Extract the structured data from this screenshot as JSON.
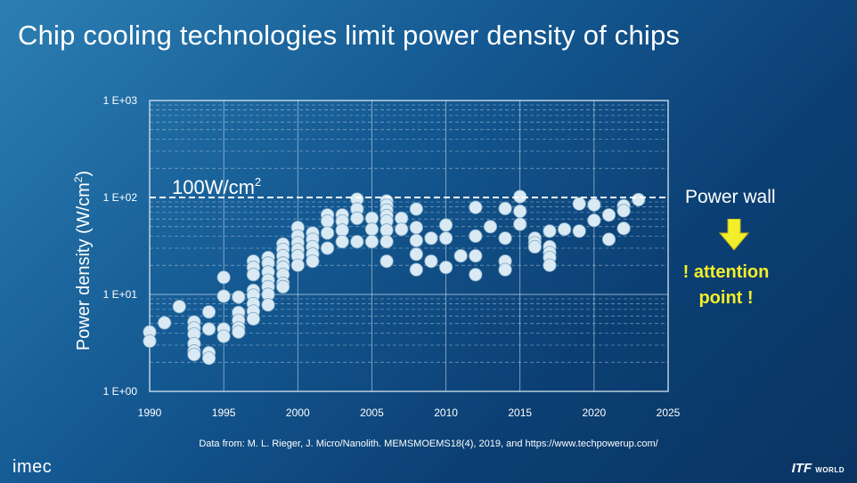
{
  "title": "Chip cooling technologies limit power density of chips",
  "annotations": {
    "threshold_label": "100W/cm",
    "threshold_sup": "2",
    "wall_label": "Power wall",
    "attention_line1": "! attention",
    "attention_line2": "point !"
  },
  "source": "Data from: M. L. Rieger, J. Micro/Nanolith. MEMSMOEMS18(4), 2019, and https://www.techpowerup.com/",
  "logos": {
    "left": "imec",
    "right_main": "ITF",
    "right_small": "WORLD"
  },
  "icons": {
    "wall_arrow": "arrow-down-icon"
  },
  "colors": {
    "accent_yellow": "#f3ee2a",
    "point_fill": "#d9eaf4",
    "grid": "#cfe3f2",
    "threshold_line": "#ffffff"
  },
  "chart_data": {
    "type": "scatter",
    "title": "Chip cooling technologies limit power density of chips",
    "xlabel": "",
    "ylabel": "Power density (W/cm",
    "ylabel_sup": "2",
    "ylabel_close": ")",
    "x_range": [
      1990,
      2025
    ],
    "y_range": [
      1,
      1000
    ],
    "y_scale": "log",
    "x_ticks": [
      1990,
      1995,
      2000,
      2005,
      2010,
      2015,
      2020,
      2025
    ],
    "y_ticks": [
      1,
      10,
      100,
      1000
    ],
    "y_tick_labels": [
      "1 E+00",
      "1 E+01",
      "1 E+02",
      "1 E+03"
    ],
    "grid": true,
    "reference_line": {
      "y": 100,
      "style": "dashed",
      "label": "100W/cm2"
    },
    "points": [
      [
        1990,
        4.1
      ],
      [
        1990,
        3.3
      ],
      [
        1991,
        5.1
      ],
      [
        1992,
        7.5
      ],
      [
        1993,
        5.2
      ],
      [
        1993,
        4.5
      ],
      [
        1993,
        3.9
      ],
      [
        1993,
        3.1
      ],
      [
        1993,
        2.6
      ],
      [
        1993,
        2.4
      ],
      [
        1994,
        6.6
      ],
      [
        1994,
        4.4
      ],
      [
        1994,
        2.5
      ],
      [
        1994,
        2.2
      ],
      [
        1995,
        15
      ],
      [
        1995,
        9.6
      ],
      [
        1995,
        4.4
      ],
      [
        1995,
        3.7
      ],
      [
        1996,
        9.4
      ],
      [
        1996,
        6.5
      ],
      [
        1996,
        5.4
      ],
      [
        1996,
        4.5
      ],
      [
        1996,
        4.1
      ],
      [
        1997,
        22
      ],
      [
        1997,
        19
      ],
      [
        1997,
        16
      ],
      [
        1997,
        11
      ],
      [
        1997,
        9.8
      ],
      [
        1997,
        8
      ],
      [
        1997,
        6.7
      ],
      [
        1997,
        5.6
      ],
      [
        1998,
        24
      ],
      [
        1998,
        21
      ],
      [
        1998,
        17
      ],
      [
        1998,
        14
      ],
      [
        1998,
        12
      ],
      [
        1998,
        10
      ],
      [
        1998,
        7.8
      ],
      [
        1999,
        33
      ],
      [
        1999,
        29
      ],
      [
        1999,
        25
      ],
      [
        1999,
        21
      ],
      [
        1999,
        19
      ],
      [
        1999,
        16
      ],
      [
        1999,
        13
      ],
      [
        1999,
        12
      ],
      [
        2000,
        49
      ],
      [
        2000,
        40
      ],
      [
        2000,
        34
      ],
      [
        2000,
        29
      ],
      [
        2000,
        25
      ],
      [
        2000,
        20
      ],
      [
        2001,
        43
      ],
      [
        2001,
        37
      ],
      [
        2001,
        31
      ],
      [
        2001,
        26
      ],
      [
        2001,
        22
      ],
      [
        2002,
        66
      ],
      [
        2002,
        57
      ],
      [
        2002,
        43
      ],
      [
        2002,
        30
      ],
      [
        2003,
        66
      ],
      [
        2003,
        57
      ],
      [
        2003,
        46
      ],
      [
        2003,
        35
      ],
      [
        2004,
        96
      ],
      [
        2004,
        76
      ],
      [
        2004,
        61
      ],
      [
        2004,
        35
      ],
      [
        2005,
        61
      ],
      [
        2005,
        47
      ],
      [
        2005,
        35
      ],
      [
        2006,
        92
      ],
      [
        2006,
        83
      ],
      [
        2006,
        74
      ],
      [
        2006,
        65
      ],
      [
        2006,
        57
      ],
      [
        2006,
        46
      ],
      [
        2006,
        35
      ],
      [
        2006,
        22
      ],
      [
        2007,
        61
      ],
      [
        2007,
        47
      ],
      [
        2008,
        76
      ],
      [
        2008,
        49
      ],
      [
        2008,
        36
      ],
      [
        2008,
        26
      ],
      [
        2008,
        18
      ],
      [
        2009,
        38
      ],
      [
        2009,
        22
      ],
      [
        2010,
        52
      ],
      [
        2010,
        38
      ],
      [
        2010,
        19
      ],
      [
        2011,
        25
      ],
      [
        2012,
        79
      ],
      [
        2012,
        40
      ],
      [
        2012,
        25
      ],
      [
        2012,
        16
      ],
      [
        2013,
        50
      ],
      [
        2014,
        77
      ],
      [
        2014,
        38
      ],
      [
        2014,
        22
      ],
      [
        2014,
        18
      ],
      [
        2015,
        102
      ],
      [
        2015,
        72
      ],
      [
        2015,
        53
      ],
      [
        2016,
        38
      ],
      [
        2016,
        34
      ],
      [
        2016,
        31
      ],
      [
        2017,
        45
      ],
      [
        2017,
        31
      ],
      [
        2017,
        27
      ],
      [
        2017,
        24
      ],
      [
        2017,
        20
      ],
      [
        2018,
        47
      ],
      [
        2019,
        86
      ],
      [
        2019,
        45
      ],
      [
        2020,
        84
      ],
      [
        2020,
        58
      ],
      [
        2021,
        66
      ],
      [
        2021,
        37
      ],
      [
        2022,
        82
      ],
      [
        2022,
        73
      ],
      [
        2022,
        48
      ],
      [
        2023,
        95
      ]
    ]
  }
}
